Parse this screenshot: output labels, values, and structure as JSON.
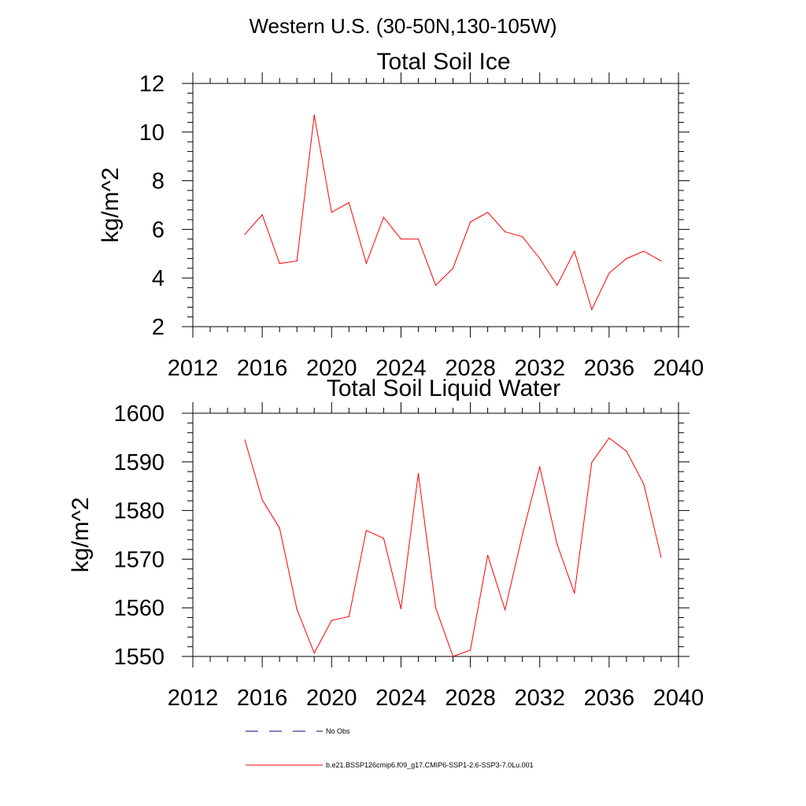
{
  "page_title": "Western U.S. (30-50N,130-105W)",
  "colors": {
    "series": "#ff0000",
    "obs": "#000080",
    "axis": "#000000"
  },
  "legend": {
    "placement": "bottom",
    "entries": [
      {
        "label": "No Obs",
        "style": "dashed",
        "color": "#000080"
      },
      {
        "label": "b.e21.BSSP126cmip6.f09_g17.CMIP6-SSP1-2.6-SSP3-7.0Lu.001",
        "style": "solid",
        "color": "#ff0000"
      }
    ]
  },
  "chart_data": [
    {
      "type": "line",
      "title": "Total Soil Ice",
      "xlabel": "",
      "ylabel": "kg/m^2",
      "xlim": [
        2012,
        2040
      ],
      "ylim": [
        2,
        12
      ],
      "xticks": [
        2012,
        2016,
        2020,
        2024,
        2028,
        2032,
        2036,
        2040
      ],
      "yticks": [
        2,
        4,
        6,
        8,
        10,
        12
      ],
      "grid": false,
      "x": [
        2015,
        2016,
        2017,
        2018,
        2019,
        2020,
        2021,
        2022,
        2023,
        2024,
        2025,
        2026,
        2027,
        2028,
        2029,
        2030,
        2031,
        2032,
        2033,
        2034,
        2035,
        2036,
        2037,
        2038,
        2039
      ],
      "series": [
        {
          "values": [
            5.8,
            6.6,
            4.6,
            4.7,
            10.7,
            6.7,
            7.1,
            4.6,
            6.5,
            5.6,
            5.6,
            3.7,
            4.4,
            6.3,
            6.7,
            5.9,
            5.7,
            4.8,
            3.7,
            5.1,
            2.7,
            4.2,
            4.8,
            5.1,
            4.7
          ]
        }
      ]
    },
    {
      "type": "line",
      "title": "Total Soil Liquid Water",
      "xlabel": "",
      "ylabel": "kg/m^2",
      "xlim": [
        2012,
        2040
      ],
      "ylim": [
        1550,
        1600
      ],
      "xticks": [
        2012,
        2016,
        2020,
        2024,
        2028,
        2032,
        2036,
        2040
      ],
      "yticks": [
        1550,
        1560,
        1570,
        1580,
        1590,
        1600
      ],
      "grid": false,
      "x": [
        2015,
        2016,
        2017,
        2018,
        2019,
        2020,
        2021,
        2022,
        2023,
        2024,
        2025,
        2026,
        2027,
        2028,
        2029,
        2030,
        2031,
        2032,
        2033,
        2034,
        2035,
        2036,
        2037,
        2038,
        2039
      ],
      "series": [
        {
          "values": [
            1594.5,
            1582.2,
            1576.4,
            1559.7,
            1550.7,
            1557.4,
            1558.2,
            1575.9,
            1574.3,
            1559.8,
            1587.6,
            1560.0,
            1550.0,
            1551.3,
            1570.8,
            1559.6,
            1575.0,
            1589.0,
            1573.1,
            1563.0,
            1589.9,
            1594.9,
            1592.2,
            1585.4,
            1570.4
          ]
        }
      ]
    }
  ]
}
